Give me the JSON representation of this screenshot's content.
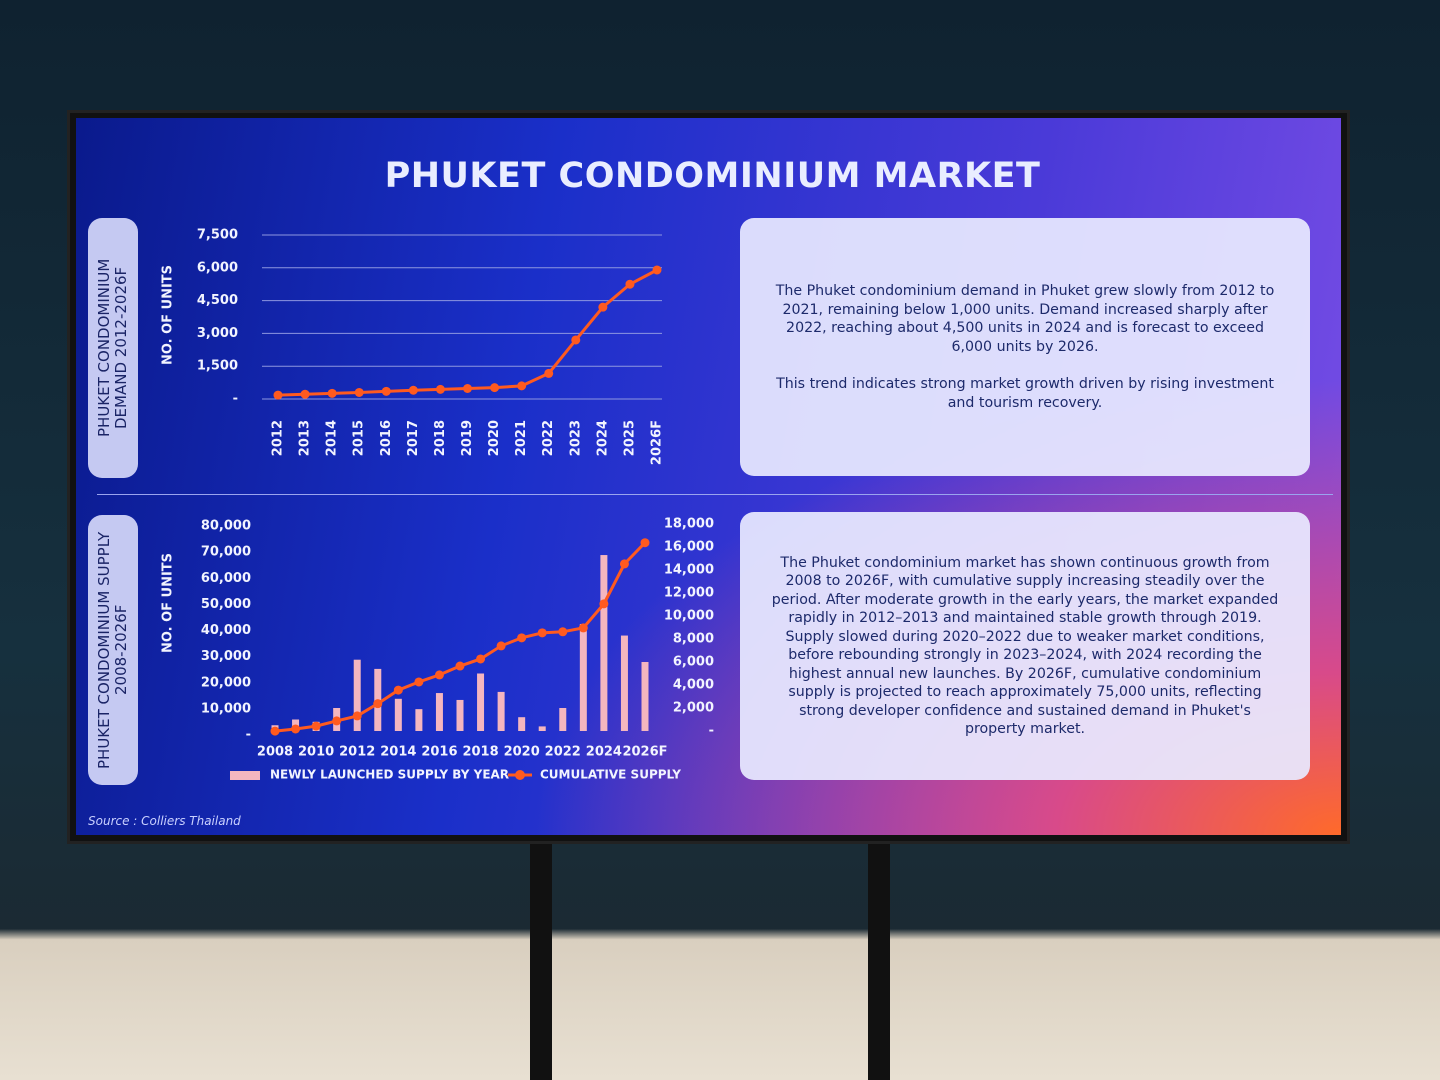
{
  "title": "PHUKET CONDOMINIUM MARKET",
  "source": "Source : Colliers Thailand",
  "chart_data": [
    {
      "type": "line",
      "side_label": "PHUKET CONDOMINIUM DEMAND 2012-2026F",
      "y_label": "NO. OF UNITS",
      "categories": [
        "2012",
        "2013",
        "2014",
        "2015",
        "2016",
        "2017",
        "2018",
        "2019",
        "2020",
        "2021",
        "2022",
        "2023",
        "2024",
        "2025",
        "2026F"
      ],
      "values": [
        180,
        220,
        260,
        300,
        350,
        400,
        440,
        480,
        520,
        600,
        1170,
        2700,
        4200,
        5250,
        5900
      ],
      "color": "#ff5a1f",
      "ylim": [
        0,
        7500
      ],
      "yticks": [
        {
          "value": 0,
          "label": "-"
        },
        {
          "value": 1500,
          "label": "1,500"
        },
        {
          "value": 3000,
          "label": "3,000"
        },
        {
          "value": 4500,
          "label": "4,500"
        },
        {
          "value": 6000,
          "label": "6,000"
        },
        {
          "value": 7500,
          "label": "7,500"
        }
      ],
      "grid": true,
      "description": [
        "The Phuket condominium demand in Phuket grew slowly from 2012 to 2021, remaining below 1,000 units. Demand increased sharply after 2022, reaching about 4,500 units in 2024 and is forecast to exceed 6,000 units by 2026.",
        "This trend indicates strong market growth driven by rising investment and tourism recovery."
      ]
    },
    {
      "type": "combo",
      "side_label": "PHUKET CONDOMINIUM SUPPLY 2008-2026F",
      "y_label": "NO. OF UNITS",
      "categories": [
        "2008",
        null,
        "2010",
        null,
        "2012",
        null,
        "2014",
        null,
        "2016",
        null,
        "2018",
        null,
        "2020",
        null,
        "2022",
        null,
        "2024",
        null,
        "2026F"
      ],
      "series": [
        {
          "name": "NEWLY LAUNCHED SUPPLY BY YEAR",
          "type": "bar",
          "axis": "y2",
          "color": "#f4b6bf",
          "values": [
            500,
            1000,
            800,
            2000,
            6200,
            5400,
            2800,
            1900,
            3300,
            2700,
            5000,
            3400,
            1200,
            400,
            2000,
            9300,
            15300,
            8300,
            6000
          ]
        },
        {
          "name": "CUMULATIVE SUPPLY",
          "type": "line",
          "color": "#ff5a1f",
          "values": [
            1500,
            2300,
            3400,
            5400,
            7300,
            12000,
            17200,
            20300,
            23000,
            26400,
            29100,
            34100,
            37200,
            39100,
            39500,
            41000,
            50200,
            65500,
            73600
          ]
        }
      ],
      "ylim": [
        0,
        80000
      ],
      "yticks": [
        {
          "value": 0,
          "label": "-"
        },
        {
          "value": 10000,
          "label": "10,000"
        },
        {
          "value": 20000,
          "label": "20,000"
        },
        {
          "value": 30000,
          "label": "30,000"
        },
        {
          "value": 40000,
          "label": "40,000"
        },
        {
          "value": 50000,
          "label": "50,000"
        },
        {
          "value": 60000,
          "label": "60,000"
        },
        {
          "value": 70000,
          "label": "70,000"
        },
        {
          "value": 80000,
          "label": "80,000"
        }
      ],
      "y2lim": [
        0,
        18000
      ],
      "y2ticks": [
        {
          "value": 0,
          "label": "-"
        },
        {
          "value": 2000,
          "label": "2,000"
        },
        {
          "value": 4000,
          "label": "4,000"
        },
        {
          "value": 6000,
          "label": "6,000"
        },
        {
          "value": 8000,
          "label": "8,000"
        },
        {
          "value": 10000,
          "label": "10,000"
        },
        {
          "value": 12000,
          "label": "12,000"
        },
        {
          "value": 14000,
          "label": "14,000"
        },
        {
          "value": 16000,
          "label": "16,000"
        },
        {
          "value": 18000,
          "label": "18,000"
        }
      ],
      "grid": false,
      "description": [
        "The Phuket condominium market has shown continuous growth from 2008 to 2026F, with cumulative supply increasing steadily over the period. After moderate growth in the early years, the market expanded rapidly in 2012–2013 and maintained stable growth through 2019. Supply slowed during 2020–2022 due to weaker market conditions, before rebounding strongly in 2023–2024, with 2024 recording the highest annual new launches. By 2026F, cumulative condominium supply is projected to reach approximately 75,000 units, reflecting strong developer confidence and sustained demand in Phuket's property market."
      ]
    }
  ]
}
